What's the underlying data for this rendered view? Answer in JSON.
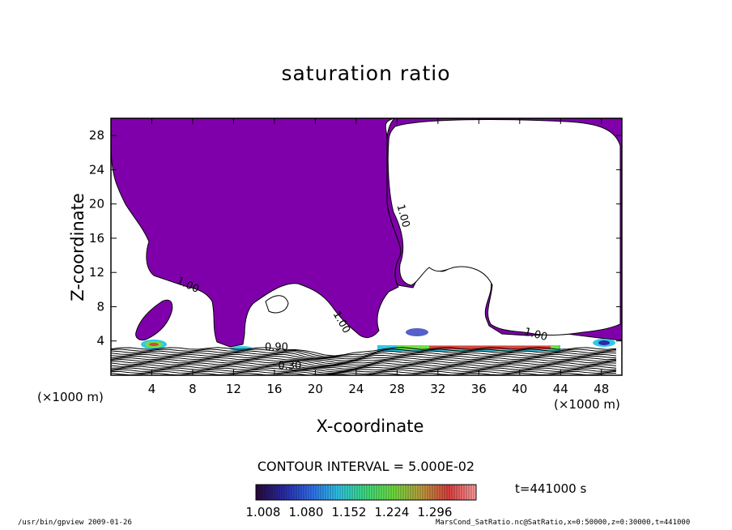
{
  "chart_data": {
    "type": "contour",
    "title": "saturation ratio",
    "xlabel": "X-coordinate",
    "ylabel": "Z-coordinate",
    "x_unit": "(×1000 m)",
    "z_unit": "(×1000 m)",
    "xlim": [
      0,
      50
    ],
    "ylim": [
      0,
      30
    ],
    "x_ticks": [
      4,
      8,
      12,
      16,
      20,
      24,
      28,
      32,
      36,
      40,
      44,
      48
    ],
    "y_ticks": [
      4,
      8,
      12,
      16,
      20,
      24,
      28
    ],
    "contour_labels": [
      {
        "text": "1.00",
        "x": 7.4,
        "z": 10.2,
        "angle": 25
      },
      {
        "text": "1.00",
        "x": 28.3,
        "z": 18.5,
        "angle": 75
      },
      {
        "text": "1.00",
        "x": 22.3,
        "z": 6.0,
        "angle": 60
      },
      {
        "text": "1.00",
        "x": 41.5,
        "z": 4.4,
        "angle": 15
      },
      {
        "text": "0.90",
        "x": 16.2,
        "z": 2.9,
        "angle": 0
      },
      {
        "text": "0.30",
        "x": 17.5,
        "z": 0.7,
        "angle": 0
      }
    ],
    "contour_interval": "CONTOUR INTERVAL = 5.000E-02",
    "colorbar": {
      "tick_labels": [
        "1.008",
        "1.080",
        "1.152",
        "1.224",
        "1.296"
      ],
      "colors": [
        "#2a0a3a",
        "#2a2aa8",
        "#2f6ff0",
        "#30c8e8",
        "#40e080",
        "#70e040",
        "#c0a040",
        "#e04040",
        "#ffa0a0"
      ]
    },
    "time": "t=441000 s",
    "colors": {
      "supersaturated_fill": "#7f00aa",
      "contour_line": "#000000"
    }
  },
  "footer": {
    "left": "/usr/bin/gpview   2009-01-26",
    "right": "MarsCond_SatRatio.nc@SatRatio,x=0:50000,z=0:30000,t=441000"
  }
}
